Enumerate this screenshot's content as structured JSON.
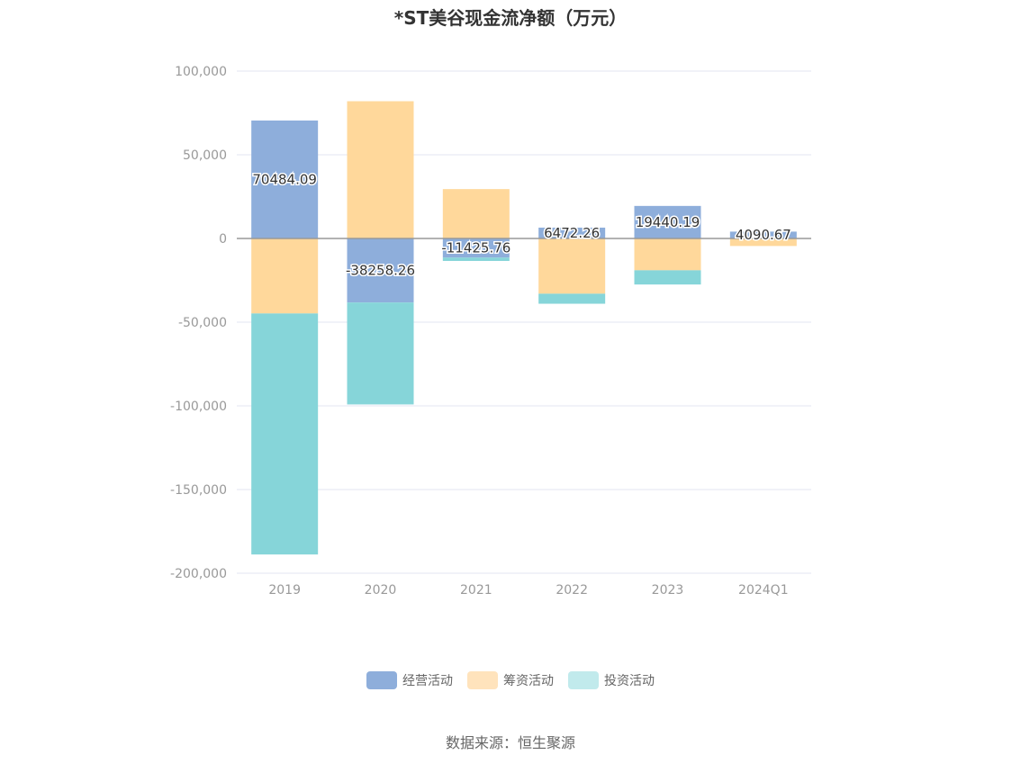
{
  "chart_data": {
    "type": "bar",
    "stacked": true,
    "title": "*ST美谷现金流净额（万元）",
    "categories": [
      "2019",
      "2020",
      "2021",
      "2022",
      "2023",
      "2024Q1"
    ],
    "ylim": [
      -200000,
      100000
    ],
    "yticks": [
      100000,
      50000,
      0,
      -50000,
      -100000,
      -150000,
      -200000
    ],
    "ytick_labels": [
      "100,000",
      "50,000",
      "0",
      "-50,000",
      "-100,000",
      "-150,000",
      "-200,000"
    ],
    "grid": true,
    "legend_position": "bottom",
    "series": [
      {
        "name": "经营活动",
        "color": "#8eaedb",
        "values": [
          70484.09,
          -38258.26,
          -11425.76,
          6472.26,
          19440.19,
          4090.67
        ],
        "labels": [
          "70484.09",
          "-38258.26",
          "-11425.76",
          "6472.26",
          "19440.19",
          "4090.67"
        ]
      },
      {
        "name": "筹资活动",
        "color": "#ffd89b",
        "values": [
          -44800,
          82000,
          29500,
          -33000,
          -19000,
          -4500
        ]
      },
      {
        "name": "投资活动",
        "color": "#86d5d9",
        "values": [
          -144000,
          -60900,
          -2000,
          -6000,
          -8500,
          0
        ]
      }
    ]
  },
  "legend": [
    {
      "label": "经营活动",
      "color": "#8eaedb"
    },
    {
      "label": "筹资活动",
      "color": "#ffe3bc"
    },
    {
      "label": "投资活动",
      "color": "#c1eaec"
    }
  ],
  "source_text": "数据来源：恒生聚源"
}
